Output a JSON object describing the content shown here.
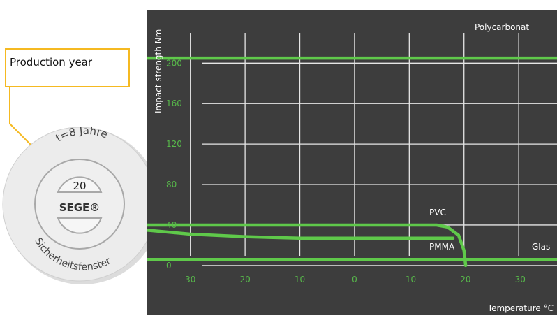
{
  "callout": {
    "label": "Production year",
    "color": "#f5b921"
  },
  "seal": {
    "top_text": "t=8 Jahre",
    "year": "20",
    "brand": "SEGE®",
    "bottom_text": "Sicherheitsfenster"
  },
  "colors": {
    "panel": "#3d3d3d",
    "grid": "#e6e6e6",
    "series": "#5fc94a",
    "tick": "#57b84a",
    "text": "#ffffff"
  },
  "chart_data": {
    "type": "line",
    "xlabel": "Temperature °C",
    "ylabel": "Impact strength Nm",
    "x_ticks": [
      30,
      20,
      10,
      0,
      -10,
      -20,
      -30
    ],
    "y_ticks": [
      0,
      40,
      80,
      120,
      160,
      200
    ],
    "xlim": [
      38,
      -37
    ],
    "ylim": [
      -7,
      232
    ],
    "x_reversed": true,
    "grid": true,
    "series": [
      {
        "name": "Polycarbonat",
        "points": [
          [
            38,
            205
          ],
          [
            -37,
            205
          ]
        ]
      },
      {
        "name": "PVC",
        "points": [
          [
            38,
            40
          ],
          [
            -15,
            40
          ],
          [
            -17,
            38
          ],
          [
            -19,
            30
          ],
          [
            -20,
            15
          ],
          [
            -20.3,
            0
          ]
        ]
      },
      {
        "name": "PMMA",
        "points": [
          [
            38,
            35
          ],
          [
            30,
            31
          ],
          [
            20,
            28.5
          ],
          [
            10,
            27
          ],
          [
            0,
            27
          ],
          [
            -10,
            27
          ],
          [
            -18,
            27
          ]
        ]
      },
      {
        "name": "Glas",
        "points": [
          [
            38,
            6
          ],
          [
            -37,
            6
          ]
        ]
      }
    ]
  }
}
